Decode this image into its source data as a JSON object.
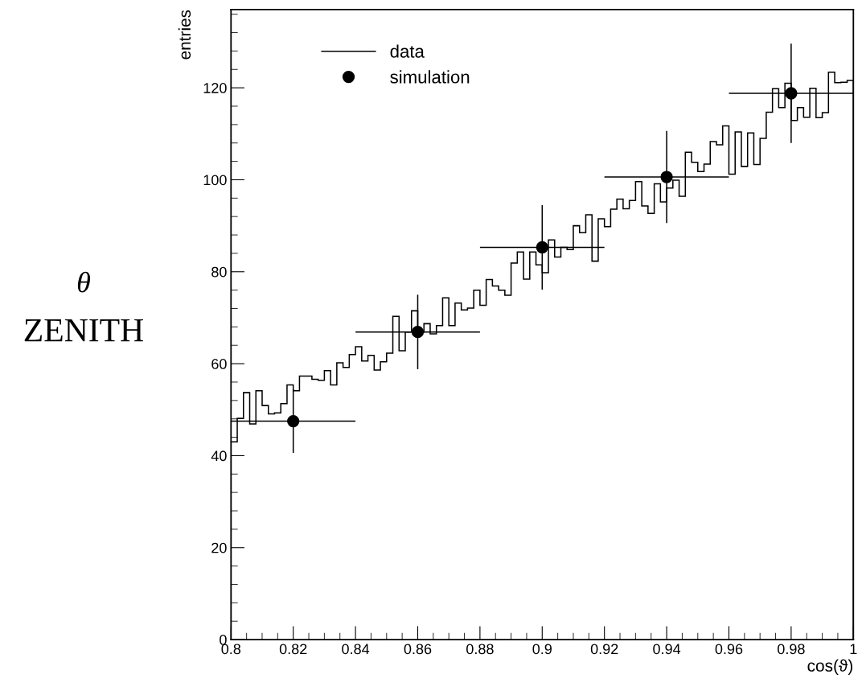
{
  "chart_data": {
    "type": "histogram",
    "xlabel": "cos(ϑ)",
    "ylabel": "entries",
    "annotations": [
      "θ",
      "ZENITH"
    ],
    "xlim": [
      0.8,
      1
    ],
    "ylim": [
      0,
      137
    ],
    "xticks": [
      0.8,
      0.82,
      0.84,
      0.86,
      0.88,
      0.9,
      0.92,
      0.94,
      0.96,
      0.98,
      1
    ],
    "yticks": [
      0,
      20,
      40,
      60,
      80,
      100,
      120
    ],
    "grid": false,
    "legend": "top left",
    "series": [
      {
        "name": "data",
        "color": "#000000",
        "bins": [
          0.8,
          0.802,
          0.804,
          0.806,
          0.808,
          0.81,
          0.812,
          0.814,
          0.816,
          0.818,
          0.82,
          0.822,
          0.824,
          0.826,
          0.828,
          0.83,
          0.832,
          0.834,
          0.836,
          0.838,
          0.84,
          0.842,
          0.844,
          0.846,
          0.848,
          0.85,
          0.852,
          0.854,
          0.856,
          0.858,
          0.86,
          0.862,
          0.864,
          0.866,
          0.868,
          0.87,
          0.872,
          0.874,
          0.876,
          0.878,
          0.88,
          0.882,
          0.884,
          0.886,
          0.888,
          0.89,
          0.892,
          0.894,
          0.896,
          0.898,
          0.9,
          0.902,
          0.904,
          0.906,
          0.908,
          0.91,
          0.912,
          0.914,
          0.916,
          0.918,
          0.92,
          0.922,
          0.924,
          0.926,
          0.928,
          0.93,
          0.932,
          0.934,
          0.936,
          0.938,
          0.94,
          0.942,
          0.944,
          0.946,
          0.948,
          0.95,
          0.952,
          0.954,
          0.956,
          0.958,
          0.96,
          0.962,
          0.964,
          0.966,
          0.968,
          0.97,
          0.972,
          0.974,
          0.976,
          0.978,
          0.98,
          0.982,
          0.984,
          0.986,
          0.988,
          0.99,
          0.992,
          0.994,
          0.996,
          0.998,
          1.0
        ],
        "values": [
          43,
          48.1,
          53.7,
          46.9,
          54.1,
          50.9,
          49.1,
          49.3,
          51.3,
          55.4,
          54.1,
          57.3,
          57.3,
          56.6,
          56.4,
          58.5,
          55.4,
          60.2,
          59.2,
          62,
          63.7,
          60.6,
          61.8,
          58.6,
          60.4,
          62.3,
          70.3,
          62.8,
          66.9,
          71.5,
          66.9,
          68.7,
          66.5,
          68.3,
          74.3,
          68.3,
          73.2,
          71.7,
          72.1,
          76,
          72.7,
          78.3,
          76.9,
          76,
          74.9,
          81.9,
          84.3,
          78.4,
          84.3,
          81.5,
          79.8,
          86.9,
          83.2,
          85.3,
          84.8,
          90,
          88.5,
          92.4,
          82.3,
          91.5,
          89.8,
          93.6,
          95.8,
          93.7,
          95.5,
          99.6,
          94.3,
          92.7,
          99.1,
          95.2,
          98.2,
          99.9,
          96.4,
          106,
          103.8,
          101.8,
          103.4,
          108.3,
          107.6,
          111.7,
          101.2,
          110.4,
          102.9,
          110.2,
          103.3,
          109,
          114.7,
          119.8,
          115.7,
          121,
          112.9,
          115.7,
          113.6,
          119.9,
          113.5,
          114.6,
          123.4,
          121.1,
          121.2,
          121.6
        ]
      },
      {
        "name": "simulation",
        "type": "scatter",
        "color": "#000000",
        "marker": "circle",
        "x": [
          0.82,
          0.86,
          0.9,
          0.94,
          0.98
        ],
        "values": [
          47.5,
          66.9,
          85.3,
          100.6,
          118.8
        ],
        "errors": [
          6.9,
          8.1,
          9.2,
          10,
          10.8
        ],
        "xerrors": [
          0.02,
          0.02,
          0.02,
          0.02,
          0.02
        ]
      }
    ]
  }
}
